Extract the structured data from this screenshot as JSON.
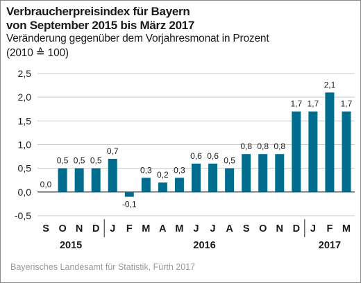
{
  "title_line1": "Verbraucherpreisindex für Bayern",
  "title_line2": "von September 2015 bis März 2017",
  "subtitle": "Veränderung gegenüber dem Vorjahresmonat in Prozent",
  "base_note": "(2010 ≙ 100)",
  "source": "Bayerisches Landesamt für Statistik, Fürth 2017",
  "colors": {
    "bar": "#006d8f",
    "grid": "#c8c8c8",
    "axis": "#222222",
    "text": "#1a1a1a"
  },
  "chart_data": {
    "type": "bar",
    "categories": [
      "S",
      "O",
      "N",
      "D",
      "J",
      "F",
      "M",
      "A",
      "M",
      "J",
      "J",
      "A",
      "S",
      "O",
      "N",
      "D",
      "J",
      "F",
      "M"
    ],
    "values": [
      0.0,
      0.5,
      0.5,
      0.5,
      0.7,
      -0.1,
      0.3,
      0.2,
      0.3,
      0.6,
      0.6,
      0.5,
      0.8,
      0.8,
      0.8,
      1.7,
      1.7,
      2.1,
      1.7
    ],
    "value_labels": [
      "0,0",
      "0,5",
      "0,5",
      "0,5",
      "0,7",
      "-0,1",
      "0,3",
      "0,2",
      "0,3",
      "0,6",
      "0,6",
      "0,5",
      "0,8",
      "0,8",
      "0,8",
      "1,7",
      "1,7",
      "2,1",
      "1,7"
    ],
    "year_groups": [
      {
        "label": "2015",
        "start": 0,
        "end": 3
      },
      {
        "label": "2016",
        "start": 4,
        "end": 15
      },
      {
        "label": "2017",
        "start": 16,
        "end": 18
      }
    ],
    "yticks": [
      -0.5,
      0.0,
      0.5,
      1.0,
      1.5,
      2.0,
      2.5
    ],
    "ytick_labels": [
      "-0,5",
      "0,0",
      "0,5",
      "1,0",
      "1,5",
      "2,0",
      "2,5"
    ],
    "ylim": [
      -0.5,
      2.5
    ],
    "grid": true,
    "xlabel": "",
    "ylabel": ""
  }
}
